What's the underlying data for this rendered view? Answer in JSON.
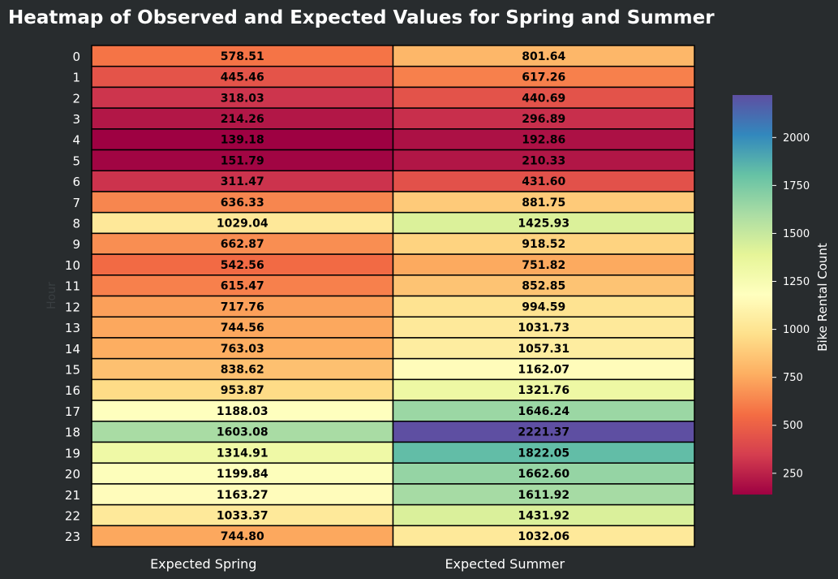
{
  "chart_data": {
    "type": "heatmap",
    "title": "Heatmap of Observed and Expected Values for Spring and Summer",
    "xlabel": "",
    "ylabel": "Hour",
    "colorbar_label": "Bike Rental Count",
    "colormap": "Spectral",
    "color_range": [
      139.18,
      2221.37
    ],
    "colorbar_ticks": [
      250,
      500,
      750,
      1000,
      1250,
      1500,
      1750,
      2000
    ],
    "columns": [
      "Expected Spring",
      "Expected Summer"
    ],
    "rows": [
      "0",
      "1",
      "2",
      "3",
      "4",
      "5",
      "6",
      "7",
      "8",
      "9",
      "10",
      "11",
      "12",
      "13",
      "14",
      "15",
      "16",
      "17",
      "18",
      "19",
      "20",
      "21",
      "22",
      "23"
    ],
    "values": [
      [
        578.51,
        801.64
      ],
      [
        445.46,
        617.26
      ],
      [
        318.03,
        440.69
      ],
      [
        214.26,
        296.89
      ],
      [
        139.18,
        192.86
      ],
      [
        151.79,
        210.33
      ],
      [
        311.47,
        431.6
      ],
      [
        636.33,
        881.75
      ],
      [
        1029.04,
        1425.93
      ],
      [
        662.87,
        918.52
      ],
      [
        542.56,
        751.82
      ],
      [
        615.47,
        852.85
      ],
      [
        717.76,
        994.59
      ],
      [
        744.56,
        1031.73
      ],
      [
        763.03,
        1057.31
      ],
      [
        838.62,
        1162.07
      ],
      [
        953.87,
        1321.76
      ],
      [
        1188.03,
        1646.24
      ],
      [
        1603.08,
        2221.37
      ],
      [
        1314.91,
        1822.05
      ],
      [
        1199.84,
        1662.6
      ],
      [
        1163.27,
        1611.92
      ],
      [
        1033.37,
        1431.92
      ],
      [
        744.8,
        1032.06
      ]
    ],
    "colors": {
      "background": "#282c2e",
      "text": "#ffffff",
      "cell_text": "#000000",
      "cell_border": "#000000"
    }
  }
}
